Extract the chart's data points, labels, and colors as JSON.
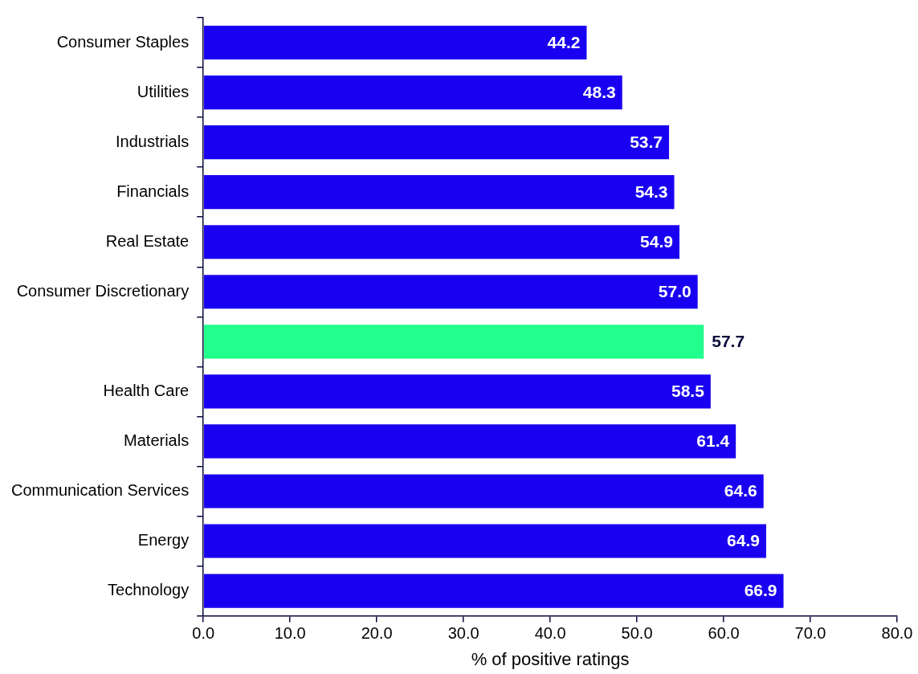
{
  "chart_data": {
    "type": "bar",
    "orientation": "horizontal",
    "xlabel": "% of positive ratings",
    "categories": [
      "Consumer Staples",
      "Utilities",
      "Industrials",
      "Financials",
      "Real Estate",
      "Consumer Discretionary",
      null,
      "Health Care",
      "Materials",
      "Communication Services",
      "Energy",
      "Technology"
    ],
    "values": [
      44.2,
      48.3,
      53.7,
      54.3,
      54.9,
      57.0,
      57.7,
      58.5,
      61.4,
      64.6,
      64.9,
      66.9
    ],
    "value_labels": [
      "44.2",
      "48.3",
      "53.7",
      "54.3",
      "54.9",
      "57.0",
      "57.7",
      "58.5",
      "61.4",
      "64.6",
      "64.9",
      "66.9"
    ],
    "colors": [
      "#1a00f0",
      "#1a00f0",
      "#1a00f0",
      "#1a00f0",
      "#1a00f0",
      "#1a00f0",
      "#21ff8c",
      "#1a00f0",
      "#1a00f0",
      "#1a00f0",
      "#1a00f0",
      "#1a00f0"
    ],
    "xlim": [
      0,
      80
    ],
    "xticks": [
      {
        "value": 0,
        "label": "0.0"
      },
      {
        "value": 10,
        "label": "10.0"
      },
      {
        "value": 20,
        "label": "20.0"
      },
      {
        "value": 30,
        "label": "30.0"
      },
      {
        "value": 40,
        "label": "40.0"
      },
      {
        "value": 50,
        "label": "50.0"
      },
      {
        "value": 60,
        "label": "60.0"
      },
      {
        "value": 70,
        "label": "70.0"
      },
      {
        "value": 80,
        "label": "80.0"
      }
    ],
    "grid": false,
    "legend": false
  }
}
